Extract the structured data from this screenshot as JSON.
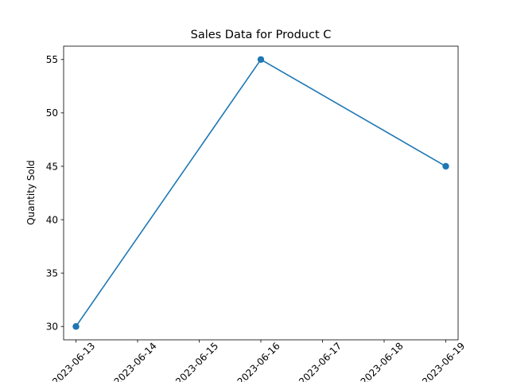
{
  "chart_data": {
    "type": "line",
    "title": "Sales Data for Product C",
    "xlabel": "",
    "ylabel": "Quantity Sold",
    "x": [
      "2023-06-13",
      "2023-06-16",
      "2023-06-19"
    ],
    "series": [
      {
        "values": [
          30,
          55,
          45
        ],
        "color": "#1f77b4",
        "marker": "circle"
      }
    ],
    "x_ticks": [
      "2023-06-13",
      "2023-06-14",
      "2023-06-15",
      "2023-06-16",
      "2023-06-17",
      "2023-06-18",
      "2023-06-19"
    ],
    "y_ticks": [
      30,
      35,
      40,
      45,
      50,
      55
    ],
    "xlim": [
      "2023-06-12T19:12",
      "2023-06-19T04:48"
    ],
    "ylim": [
      28.75,
      56.25
    ],
    "grid": false,
    "legend": "none"
  }
}
